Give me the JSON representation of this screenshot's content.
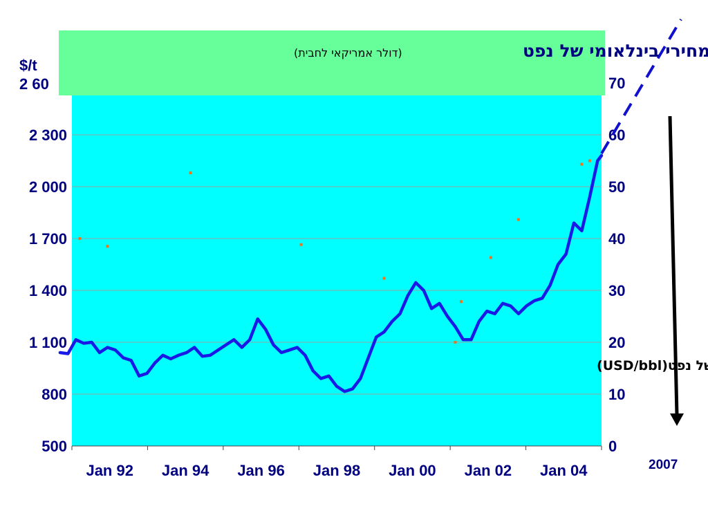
{
  "chart_data": {
    "type": "line",
    "title": "מחירי בינלאומי של נפט",
    "subtitle": "(דולר אמריקאי לחבית)",
    "left_axis": {
      "unit_label": "$/t",
      "ticks": [
        500,
        800,
        1100,
        1400,
        1700,
        2000,
        2300
      ],
      "top_tick_label": "2 60",
      "tick_labels": [
        "500",
        "800",
        "1 100",
        "1 400",
        "1 700",
        "2 000",
        "2 300"
      ],
      "range": [
        500,
        2600
      ]
    },
    "right_axis": {
      "ticks": [
        0,
        10,
        20,
        30,
        40,
        50,
        60,
        70
      ],
      "tick_labels": [
        "0",
        "10",
        "20",
        "30",
        "40",
        "50",
        "60",
        "70"
      ],
      "range": [
        0,
        70
      ]
    },
    "x_axis": {
      "tick_labels": [
        "Jan 92",
        "Jan 94",
        "Jan 96",
        "Jan 98",
        "Jan 00",
        "Jan 02",
        "Jan 04"
      ],
      "range": [
        1992.0,
        2005.4
      ]
    },
    "series": [
      {
        "name": "מחיר בינלאומי של נפט(USD/bbl)",
        "axis": "right",
        "color": "#1a1ae6",
        "x": [
          1991.7,
          1991.9,
          1992.1,
          1992.3,
          1992.5,
          1992.7,
          1992.9,
          1993.1,
          1993.3,
          1993.5,
          1993.7,
          1993.9,
          1994.1,
          1994.3,
          1994.5,
          1994.7,
          1994.9,
          1995.1,
          1995.3,
          1995.5,
          1995.7,
          1995.9,
          1996.1,
          1996.3,
          1996.5,
          1996.7,
          1996.9,
          1997.1,
          1997.3,
          1997.5,
          1997.7,
          1997.9,
          1998.1,
          1998.3,
          1998.5,
          1998.7,
          1998.9,
          1999.1,
          1999.3,
          1999.5,
          1999.7,
          1999.9,
          2000.1,
          2000.3,
          2000.5,
          2000.7,
          2000.9,
          2001.1,
          2001.3,
          2001.5,
          2001.7,
          2001.9,
          2002.1,
          2002.3,
          2002.5,
          2002.7,
          2002.9,
          2003.1,
          2003.3,
          2003.5,
          2003.7,
          2003.9,
          2004.1,
          2004.3,
          2004.5,
          2004.7,
          2004.9,
          2005.1,
          2005.3,
          2005.4
        ],
        "values": [
          18,
          17.8,
          20.5,
          19.8,
          20,
          18,
          19,
          18.5,
          17,
          16.5,
          13.5,
          14,
          16,
          17.5,
          16.8,
          17.5,
          18,
          19,
          17.3,
          17.5,
          18.5,
          19.5,
          20.5,
          19,
          20.5,
          24.5,
          22.5,
          19.5,
          18,
          18.5,
          19,
          17.5,
          14.5,
          13,
          13.5,
          11.5,
          10.5,
          11,
          13,
          17,
          21,
          22,
          24,
          25.5,
          29,
          31.5,
          30,
          26.5,
          27.5,
          25,
          23,
          20.5,
          20.5,
          24,
          26,
          25.5,
          27.5,
          27,
          25.5,
          27,
          28,
          28.5,
          31,
          35,
          37,
          43,
          41.5,
          48,
          55,
          56
        ]
      }
    ],
    "scatter_points": {
      "axis": "left",
      "color": "#e87722",
      "x": [
        1992.2,
        1992.9,
        1995.0,
        1997.8,
        1999.9,
        2001.7,
        2001.85,
        2002.6,
        2003.3,
        2004.9,
        2005.1
      ],
      "values": [
        1700,
        1655,
        2080,
        1665,
        1470,
        1100,
        1335,
        1590,
        1810,
        2130,
        2150
      ]
    },
    "trend_extension": {
      "label": "2007",
      "color": "#1111cc"
    },
    "downward_arrow_color": "#000000",
    "colors": {
      "plot_bg": "#00ffff",
      "title_bg": "#66ff99",
      "axis_text": "#000080"
    },
    "grid": true
  }
}
